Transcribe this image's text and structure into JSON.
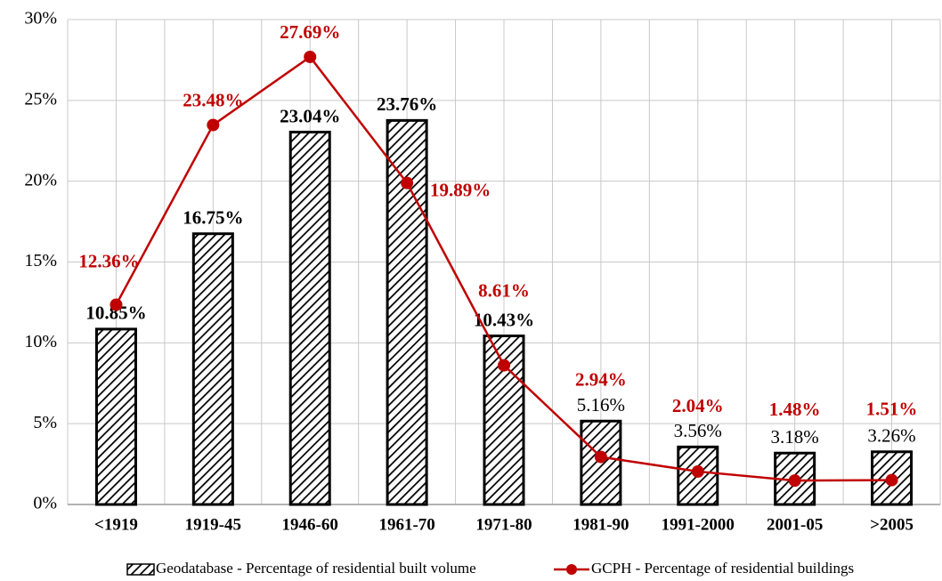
{
  "chart_data": {
    "type": "combo",
    "categories": [
      "<1919",
      "1919-45",
      "1946-60",
      "1961-70",
      "1971-80",
      "1981-90",
      "1991-2000",
      "2001-05",
      ">2005"
    ],
    "series": [
      {
        "name": "Geodatabase - Percentage of residential built volume",
        "kind": "bar",
        "color": "#000000",
        "values": [
          10.85,
          16.75,
          23.04,
          23.76,
          10.43,
          5.16,
          3.56,
          3.18,
          3.26
        ],
        "value_labels": [
          "10.85%",
          "16.75%",
          "23.04%",
          "23.76%",
          "10.43%",
          "5.16%",
          "3.56%",
          "3.18%",
          "3.26%"
        ]
      },
      {
        "name": "GCPH - Percentage of residential buildings",
        "kind": "line",
        "color": "#c00000",
        "values": [
          12.36,
          23.48,
          27.69,
          19.89,
          8.61,
          2.94,
          2.04,
          1.48,
          1.51
        ],
        "value_labels": [
          "12.36%",
          "23.48%",
          "27.69%",
          "19.89%",
          "8.61%",
          "2.94%",
          "2.04%",
          "1.48%",
          "1.51%"
        ]
      }
    ],
    "ylim": [
      0,
      30
    ],
    "yticks": [
      {
        "value": 0,
        "label": "0%"
      },
      {
        "value": 5,
        "label": "5%"
      },
      {
        "value": 10,
        "label": "10%"
      },
      {
        "value": 15,
        "label": "15%"
      },
      {
        "value": 20,
        "label": "20%"
      },
      {
        "value": 25,
        "label": "25%"
      },
      {
        "value": 30,
        "label": "30%"
      }
    ],
    "grid": true,
    "legend": "bottom"
  }
}
